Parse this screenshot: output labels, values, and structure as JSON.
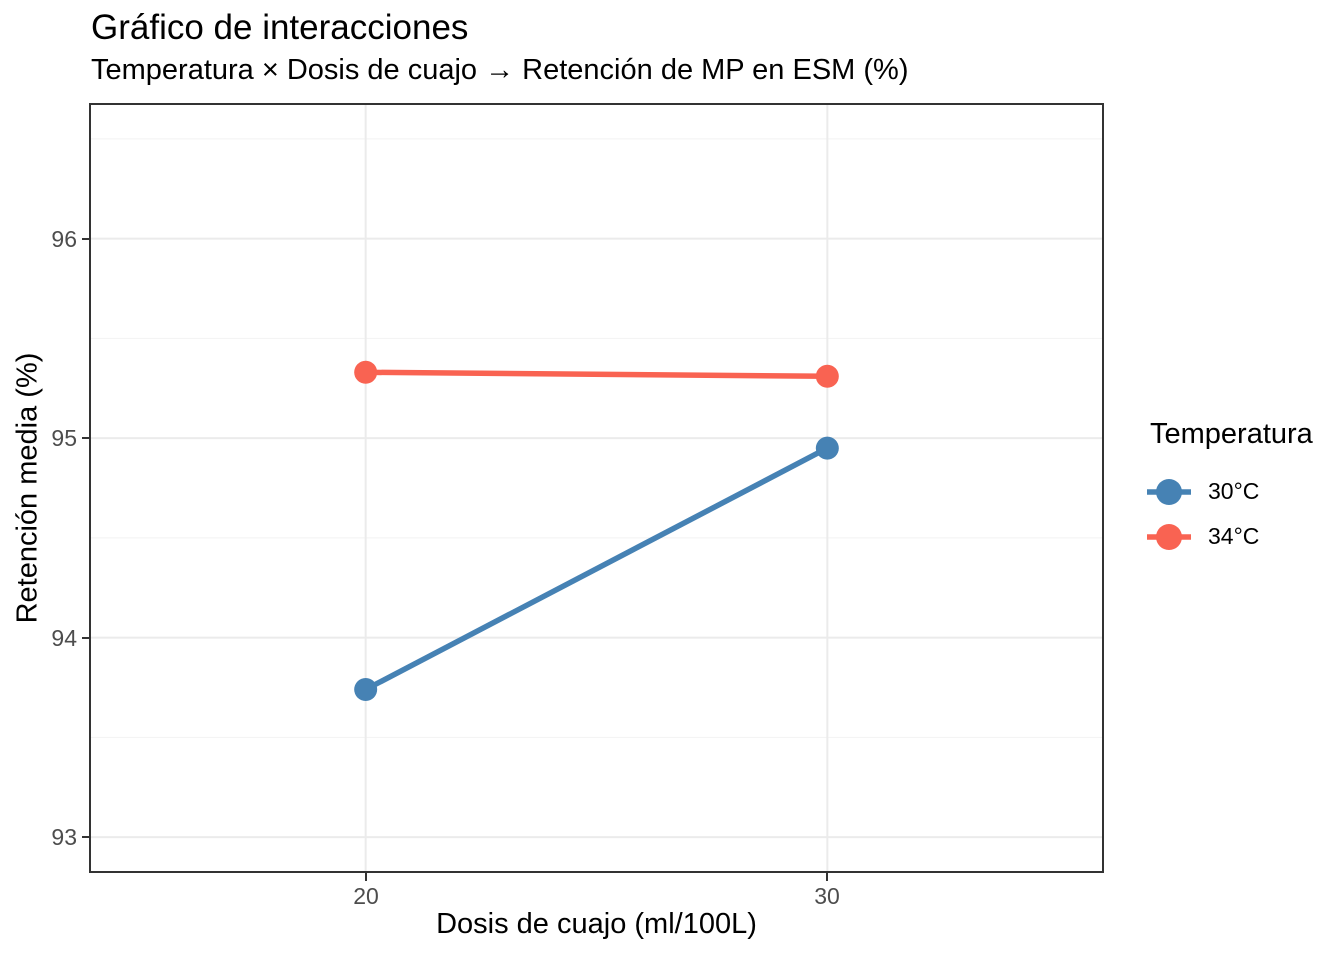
{
  "chart_data": {
    "type": "line",
    "title": "Gráfico de interacciones",
    "subtitle": "Temperatura × Dosis de cuajo → Retención de MP en ESM (%)",
    "xlabel": "Dosis de cuajo (ml/100L)",
    "ylabel": "Retención media (%)",
    "x": [
      20,
      30
    ],
    "x_tick_labels": [
      "20",
      "30"
    ],
    "y_ticks": [
      93,
      94,
      95,
      96
    ],
    "y_minor_ticks": [
      93.5,
      94.5,
      95.5,
      96.5
    ],
    "x_domain": [
      14.05,
      35.95
    ],
    "y_domain": [
      92.83,
      96.67
    ],
    "grid": true,
    "series": [
      {
        "name": "30°C",
        "color": "#4682B4",
        "values": [
          93.74,
          94.95
        ]
      },
      {
        "name": "34°C",
        "color": "#F96352",
        "values": [
          95.33,
          95.31
        ]
      }
    ],
    "legend": {
      "title": "Temperatura",
      "position": "right"
    },
    "style": {
      "panel_border_color": "#333333",
      "grid_major_color": "#ebebeb",
      "grid_minor_color": "#f2f2f2",
      "tick_color": "#333333",
      "axis_text_color": "#4d4d4d",
      "background": "#ffffff"
    }
  }
}
